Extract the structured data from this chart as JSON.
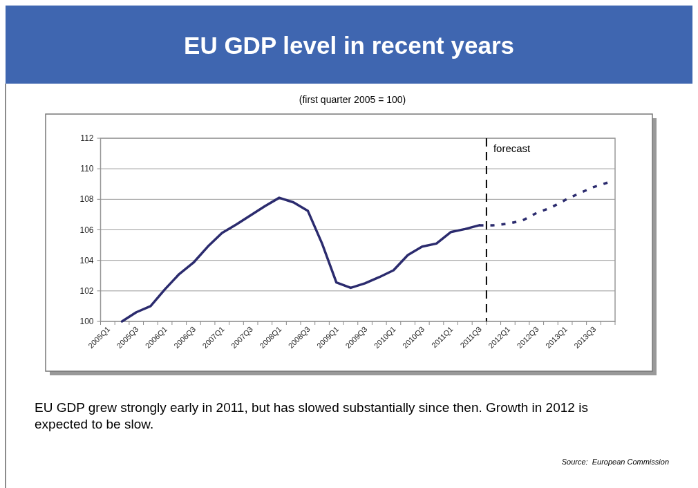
{
  "chart_data": {
    "type": "line",
    "title": "EU GDP level in recent years",
    "subtitle": "(first quarter 2005 = 100)",
    "categories": [
      "2005Q1",
      null,
      "2005Q3",
      null,
      "2006Q1",
      null,
      "2006Q3",
      null,
      "2007Q1",
      null,
      "2007Q3",
      null,
      "2008Q1",
      null,
      "2008Q3",
      null,
      "2009Q1",
      null,
      "2009Q3",
      null,
      "2010Q1",
      null,
      "2010Q3",
      null,
      "2011Q1",
      null,
      "2011Q3",
      null,
      "2012Q1",
      null,
      "2012Q3",
      null,
      "2013Q1",
      null,
      "2013Q3",
      null
    ],
    "series": [
      {
        "color": "#2b2b6e",
        "line_style": "solid",
        "values": [
          null,
          100.0,
          100.6,
          101.0,
          102.1,
          103.1,
          103.85,
          104.9,
          105.8,
          106.35,
          106.95,
          107.55,
          108.1,
          107.8,
          107.25,
          105.1,
          102.55,
          102.2,
          102.5,
          102.9,
          103.35,
          104.35,
          104.9,
          105.1,
          105.85,
          106.05,
          106.3,
          null,
          null,
          null,
          null,
          null,
          null,
          null,
          null,
          null
        ]
      },
      {
        "color": "#2b2b6e",
        "line_style": "dotted",
        "values": [
          null,
          null,
          null,
          null,
          null,
          null,
          null,
          null,
          null,
          null,
          null,
          null,
          null,
          null,
          null,
          null,
          null,
          null,
          null,
          null,
          null,
          null,
          null,
          null,
          null,
          null,
          106.3,
          106.3,
          106.4,
          106.6,
          107.1,
          107.45,
          107.95,
          108.4,
          108.8,
          109.1
        ]
      }
    ],
    "ylim": [
      100,
      112
    ],
    "yticks": [
      100,
      102,
      104,
      106,
      108,
      110,
      112
    ],
    "grid": "y",
    "ref_lines": [
      {
        "axis": "x",
        "value": "2011Q3",
        "label": "forecast",
        "color": "#000000",
        "line_style": "dashed"
      }
    ],
    "annotations": [
      "EU GDP grew strongly early in 2011, but has slowed substantially since then. Growth in 2012 is expected to be slow.",
      "Source:  European Commission"
    ]
  }
}
